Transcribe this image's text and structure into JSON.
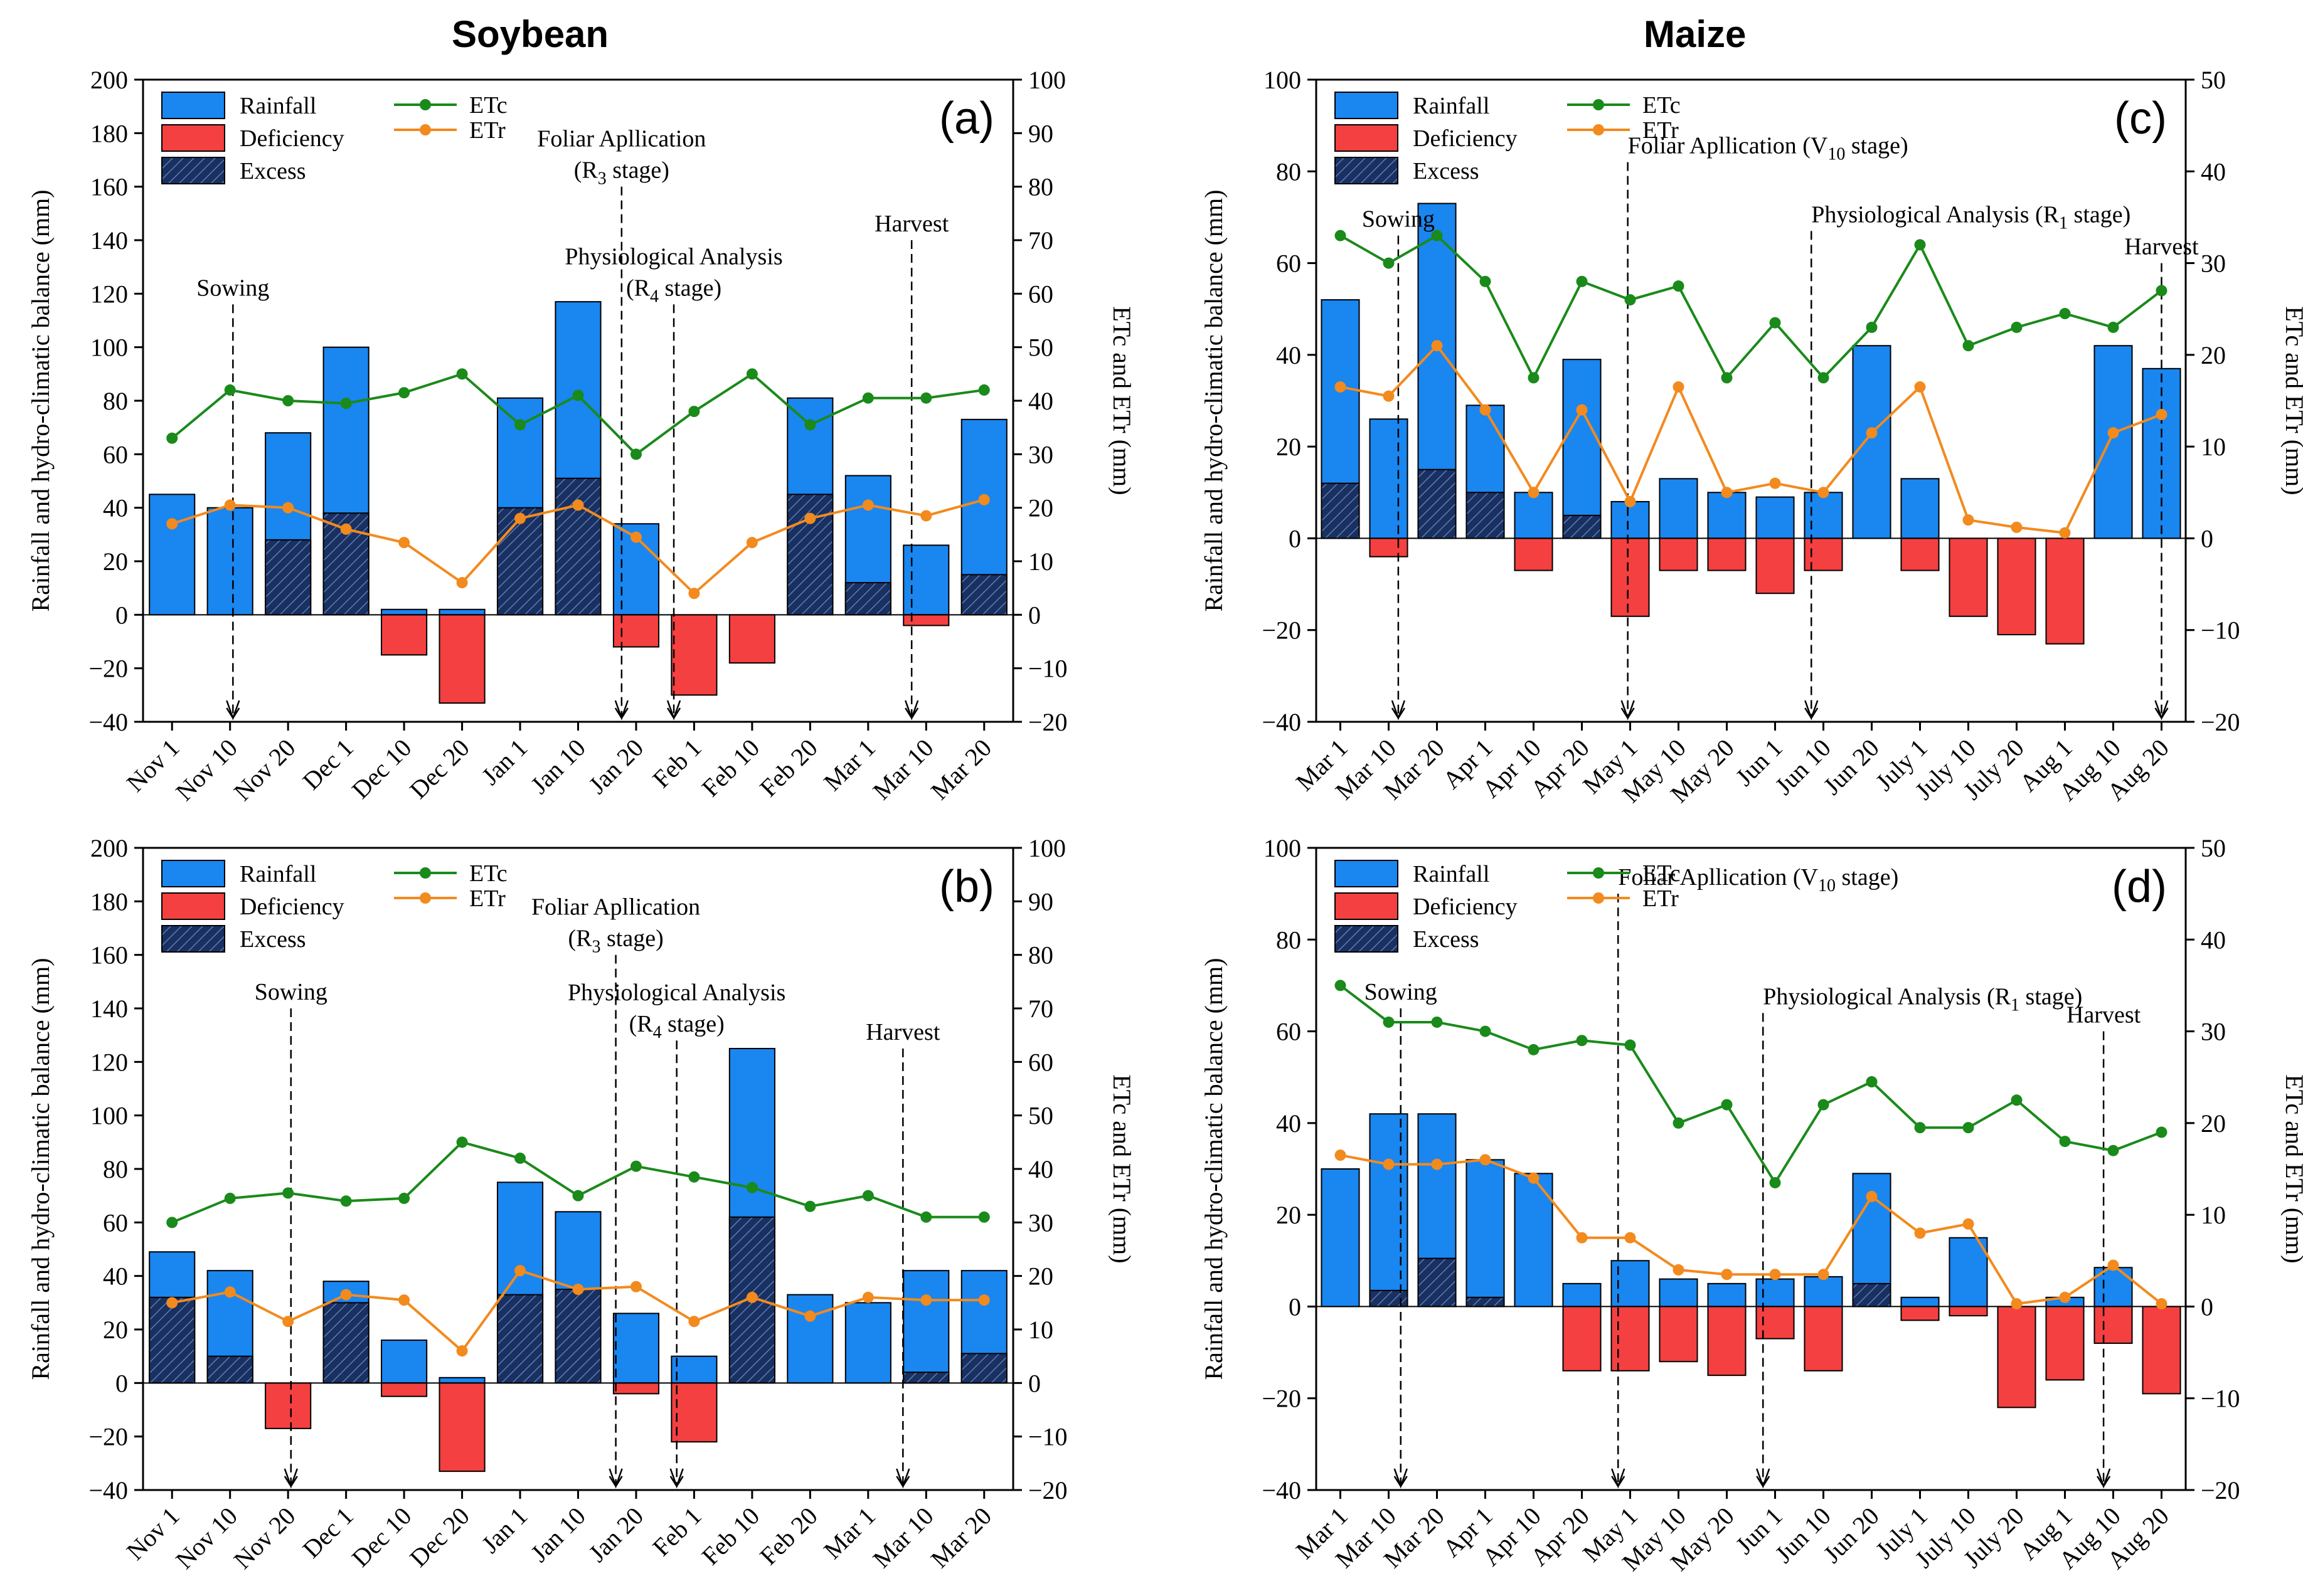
{
  "titles": {
    "left": "Soybean",
    "right": "Maize"
  },
  "colors": {
    "rainfall": "#1a86f0",
    "deficiency": "#f44040",
    "excess": "#1a3060",
    "etc": "#1a8a1a",
    "etr": "#f28a1e"
  },
  "legend": {
    "rainfall": "Rainfall",
    "deficiency": "Deficiency",
    "excess": "Excess",
    "etc": "ETc",
    "etr": "ETr"
  },
  "left_axis_label": "Rainfall and hydro-climatic balance (mm)",
  "right_axis_label": "ETc and ETr (mm)",
  "chart_data": [
    {
      "panel": "(a)",
      "type": "bar+line",
      "categories": [
        "Nov 1",
        "Nov 10",
        "Nov 20",
        "Dec 1",
        "Dec 10",
        "Dec 20",
        "Jan 1",
        "Jan 10",
        "Jan 20",
        "Feb 1",
        "Feb 10",
        "Feb 20",
        "Mar 1",
        "Mar 10",
        "Mar 20"
      ],
      "ylim": [
        -40,
        200
      ],
      "yticks": [
        -40,
        -20,
        0,
        20,
        40,
        60,
        80,
        100,
        120,
        140,
        160,
        180,
        200
      ],
      "y2lim": [
        -20,
        100
      ],
      "y2ticks": [
        -20,
        -10,
        0,
        10,
        20,
        30,
        40,
        50,
        60,
        70,
        80,
        90,
        100
      ],
      "rainfall": [
        45,
        40,
        68,
        100,
        2,
        2,
        81,
        117,
        34,
        0,
        0,
        81,
        52,
        26,
        73
      ],
      "excess": [
        0,
        0,
        28,
        38,
        0,
        0,
        40,
        51,
        0,
        0,
        0,
        45,
        12,
        0,
        15
      ],
      "deficiency": [
        0,
        0,
        0,
        0,
        -15,
        -33,
        0,
        0,
        -12,
        -30,
        -18,
        0,
        0,
        -4,
        0
      ],
      "etc": [
        33,
        42,
        40,
        39.5,
        41.5,
        45,
        35.5,
        41,
        30,
        38,
        45,
        35.5,
        40.5,
        40.5,
        42
      ],
      "etr": [
        17,
        20.5,
        20,
        16,
        13.5,
        6,
        18,
        20.5,
        14.5,
        4,
        13.5,
        18,
        20.5,
        18.5,
        21.5
      ],
      "annotations": [
        {
          "text": "Sowing",
          "at": 1.05,
          "top": 116
        },
        {
          "text": "Foliar Apllication",
          "sub": "(R",
          "subsc": "3",
          "tail": " stage)",
          "at": 7.75,
          "top": 160,
          "twoLine": true
        },
        {
          "text": "Physiological Analysis",
          "sub": "(R",
          "subsc": "4",
          "tail": " stage)",
          "at": 8.65,
          "top": 116,
          "twoLine": true
        },
        {
          "text": "Harvest",
          "at": 12.75,
          "top": 140
        }
      ]
    },
    {
      "panel": "(b)",
      "type": "bar+line",
      "categories": [
        "Nov 1",
        "Nov 10",
        "Nov 20",
        "Dec 1",
        "Dec 10",
        "Dec 20",
        "Jan 1",
        "Jan 10",
        "Jan 20",
        "Feb 1",
        "Feb 10",
        "Feb 20",
        "Mar 1",
        "Mar 10",
        "Mar 20"
      ],
      "ylim": [
        -40,
        200
      ],
      "yticks": [
        -40,
        -20,
        0,
        20,
        40,
        60,
        80,
        100,
        120,
        140,
        160,
        180,
        200
      ],
      "y2lim": [
        -20,
        100
      ],
      "y2ticks": [
        -20,
        -10,
        0,
        10,
        20,
        30,
        40,
        50,
        60,
        70,
        80,
        90,
        100
      ],
      "rainfall": [
        49,
        42,
        0,
        38,
        16,
        2,
        75,
        64,
        26,
        10,
        125,
        33,
        30,
        42,
        42
      ],
      "excess": [
        32,
        10,
        0,
        30,
        0,
        0,
        33,
        35,
        0,
        0,
        62,
        0,
        0,
        4,
        11
      ],
      "deficiency": [
        0,
        0,
        -17,
        0,
        -5,
        -33,
        0,
        0,
        -4,
        -22,
        0,
        0,
        0,
        0,
        0
      ],
      "etc": [
        30,
        34.5,
        35.5,
        34,
        34.5,
        45,
        42,
        35,
        40.5,
        38.5,
        36.5,
        33,
        35,
        31,
        31
      ],
      "etr": [
        15,
        17,
        11.5,
        16.5,
        15.5,
        6,
        21,
        17.5,
        18,
        11.5,
        16,
        12.5,
        16,
        15.5,
        15.5
      ],
      "annotations": [
        {
          "text": "Sowing",
          "at": 2.05,
          "top": 140
        },
        {
          "text": "Foliar Apllication",
          "sub": "(R",
          "subsc": "3",
          "tail": " stage)",
          "at": 7.65,
          "top": 160,
          "twoLine": true
        },
        {
          "text": "Physiological Analysis",
          "sub": "(R",
          "subsc": "4",
          "tail": " stage)",
          "at": 8.7,
          "top": 128,
          "twoLine": true
        },
        {
          "text": "Harvest",
          "at": 12.6,
          "top": 125
        }
      ]
    },
    {
      "panel": "(c)",
      "type": "bar+line",
      "categories": [
        "Mar 1",
        "Mar 10",
        "Mar 20",
        "Apr 1",
        "Apr 10",
        "Apr 20",
        "May 1",
        "May 10",
        "May 20",
        "Jun 1",
        "Jun 10",
        "Jun 20",
        "July 1",
        "July 10",
        "July 20",
        "Aug 1",
        "Aug 10",
        "Aug 20"
      ],
      "ylim": [
        -40,
        100
      ],
      "yticks": [
        -40,
        -20,
        0,
        20,
        40,
        60,
        80,
        100
      ],
      "y2lim": [
        -20,
        50
      ],
      "y2ticks": [
        -20,
        -10,
        0,
        10,
        20,
        30,
        40,
        50
      ],
      "rainfall": [
        52,
        26,
        73,
        29,
        10,
        39,
        8,
        13,
        10,
        9,
        10,
        42,
        13,
        0,
        0,
        0,
        42,
        37
      ],
      "excess": [
        12,
        0,
        15,
        10,
        0,
        5,
        0,
        0,
        0,
        0,
        0,
        0,
        0,
        0,
        0,
        0,
        0,
        0
      ],
      "deficiency": [
        0,
        -4,
        0,
        0,
        -7,
        0,
        -17,
        -7,
        -7,
        -12,
        -7,
        0,
        -7,
        -17,
        -21,
        -23,
        0,
        0
      ],
      "etc": [
        33,
        30,
        33,
        28,
        17.5,
        28,
        26,
        27.5,
        17.5,
        23.5,
        17.5,
        23,
        32,
        21,
        23,
        24.5,
        23,
        27
      ],
      "etr": [
        16.5,
        15.5,
        21,
        14,
        5,
        14,
        4,
        16.5,
        5,
        6,
        5,
        11.5,
        16.5,
        2,
        1.2,
        0.6,
        11.5,
        13.5
      ],
      "annotations": [
        {
          "text": "Sowing",
          "at": 1.2,
          "top": 66
        },
        {
          "text": "Foliar Apllication (V",
          "subsc": "10",
          "tail": " stage)",
          "at": 5.95,
          "top": 82,
          "inlineSub": true
        },
        {
          "text": "Physiological Analysis (R",
          "subsc": "1",
          "tail": " stage)",
          "at": 9.75,
          "top": 67,
          "inlineSub": true
        },
        {
          "text": "Harvest",
          "at": 17,
          "top": 60
        }
      ]
    },
    {
      "panel": "(d)",
      "type": "bar+line",
      "categories": [
        "Mar 1",
        "Mar 10",
        "Mar 20",
        "Apr 1",
        "Apr 10",
        "Apr 20",
        "May 1",
        "May 10",
        "May 20",
        "Jun 1",
        "Jun 10",
        "Jun 20",
        "July 1",
        "July 10",
        "July 20",
        "Aug 1",
        "Aug 10",
        "Aug 20"
      ],
      "ylim": [
        -40,
        100
      ],
      "yticks": [
        -40,
        -20,
        0,
        20,
        40,
        60,
        80,
        100
      ],
      "y2lim": [
        -20,
        50
      ],
      "y2ticks": [
        -20,
        -10,
        0,
        10,
        20,
        30,
        40,
        50
      ],
      "rainfall": [
        30,
        42,
        42,
        32,
        29,
        5,
        10,
        6,
        5,
        6,
        6.5,
        29,
        2,
        15,
        0,
        2,
        8.5,
        0
      ],
      "excess": [
        0,
        3.5,
        10.5,
        2,
        0,
        0,
        0,
        0,
        0,
        0,
        0,
        5,
        0,
        0,
        0,
        0,
        0,
        0
      ],
      "deficiency": [
        0,
        0,
        0,
        0,
        0,
        -14,
        -14,
        -12,
        -15,
        -7,
        -14,
        0,
        -3,
        -2,
        -22,
        -16,
        -8,
        -19
      ],
      "etc": [
        35,
        31,
        31,
        30,
        28,
        29,
        28.5,
        20,
        22,
        13.5,
        22,
        24.5,
        19.5,
        19.5,
        22.5,
        18,
        17,
        19
      ],
      "etr": [
        16.5,
        15.5,
        15.5,
        16,
        14,
        7.5,
        7.5,
        4,
        3.5,
        3.5,
        3.5,
        12,
        8,
        9,
        0.3,
        1,
        4.5,
        0.3
      ],
      "annotations": [
        {
          "text": "Sowing",
          "at": 1.25,
          "top": 65
        },
        {
          "text": "Foliar Apllication (V",
          "subsc": "10",
          "tail": " stage)",
          "at": 5.75,
          "top": 90,
          "inlineSub": true
        },
        {
          "text": "Physiological Analysis (R",
          "subsc": "1",
          "tail": " stage)",
          "at": 8.75,
          "top": 64,
          "inlineSub": true
        },
        {
          "text": "Harvest",
          "at": 15.8,
          "top": 60
        }
      ]
    }
  ]
}
